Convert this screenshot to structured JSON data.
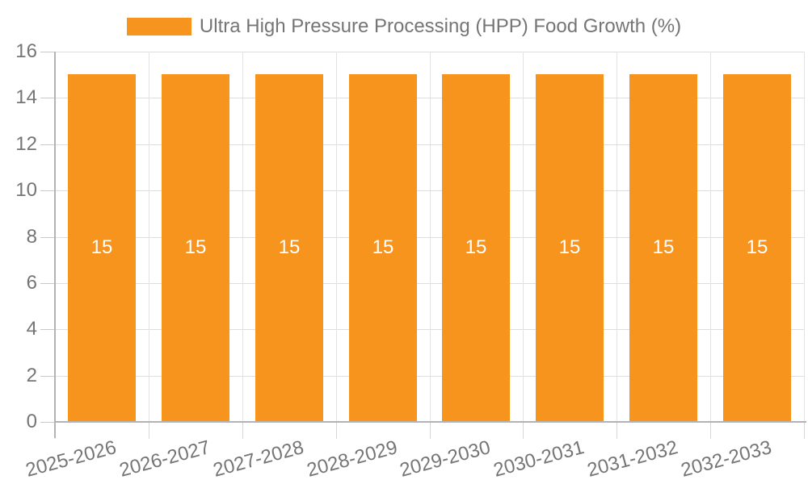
{
  "legend": {
    "label": "Ultra High Pressure Processing (HPP) Food Growth (%)",
    "swatch_color": "#F7941E"
  },
  "chart_data": {
    "type": "bar",
    "title": "",
    "xlabel": "",
    "ylabel": "",
    "categories": [
      "2025-2026",
      "2026-2027",
      "2027-2028",
      "2028-2029",
      "2029-2030",
      "2030-2031",
      "2031-2032",
      "2032-2033"
    ],
    "series": [
      {
        "name": "Ultra High Pressure Processing (HPP) Food Growth (%)",
        "values": [
          15,
          15,
          15,
          15,
          15,
          15,
          15,
          15
        ],
        "color": "#F7941E"
      }
    ],
    "value_labels": [
      "15",
      "15",
      "15",
      "15",
      "15",
      "15",
      "15",
      "15"
    ],
    "ylim": [
      0,
      16
    ],
    "yticks": [
      0,
      2,
      4,
      6,
      8,
      10,
      12,
      14,
      16
    ],
    "grid": true,
    "legend_position": "top",
    "style": {
      "bar_color": "#F7941E",
      "bar_label_color": "#ffffff",
      "axis_line_color": "#b3b3b3",
      "grid_color": "#dedede",
      "tick_color": "#c9c9c9",
      "axis_text_color": "#757575",
      "background": "#ffffff"
    }
  }
}
